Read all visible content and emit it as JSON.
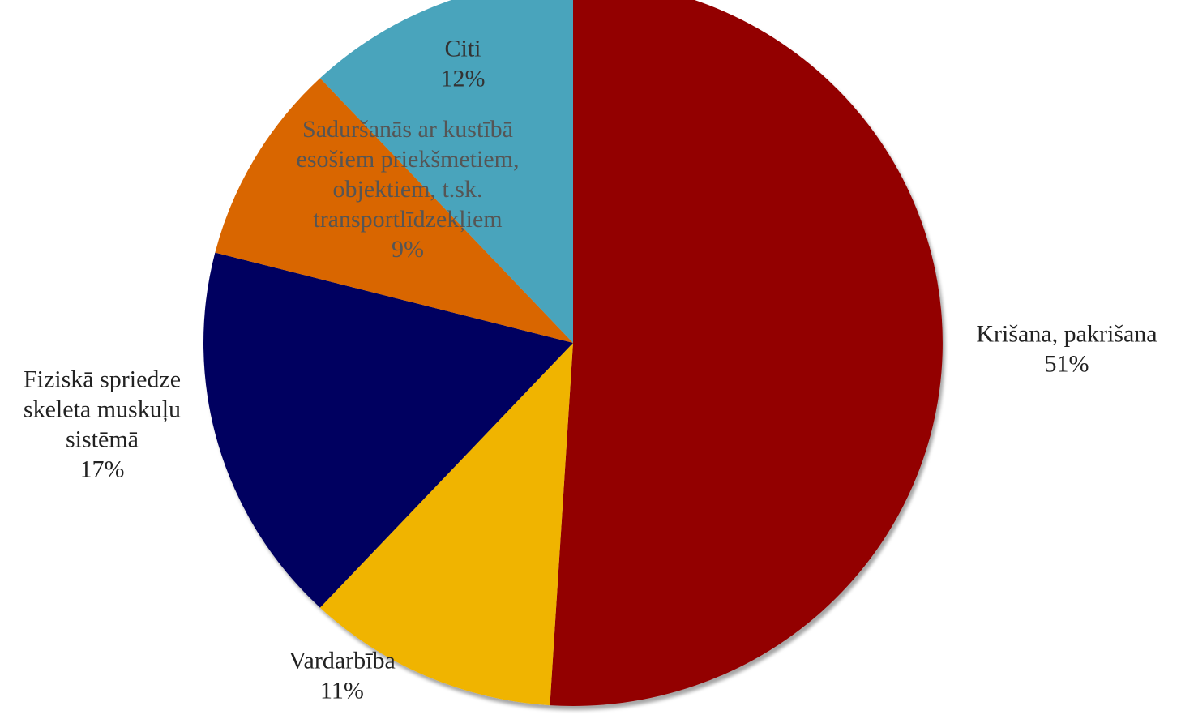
{
  "chart_data": {
    "type": "pie",
    "slices": [
      {
        "label_lines": [
          "Krišana, pakrišana"
        ],
        "percent_label": "51%",
        "value": 51,
        "color": "#930000",
        "label_color": "#222222"
      },
      {
        "label_lines": [
          "Vardarbība"
        ],
        "percent_label": "11%",
        "value": 11,
        "color": "#f0b400",
        "label_color": "#222222"
      },
      {
        "label_lines": [
          "Fiziskā spriedze",
          "skeleta muskuļu",
          "sistēmā"
        ],
        "percent_label": "17%",
        "value": 17,
        "color": "#000060",
        "label_color": "#222222"
      },
      {
        "label_lines": [
          "Saduršanās ar kustībā",
          "esošiem priekšmetiem,",
          "objektiem, t.sk.",
          "transportlīdzekļiem"
        ],
        "percent_label": "9%",
        "value": 9,
        "color": "#d96604",
        "label_color": "#555555"
      },
      {
        "label_lines": [
          "Citi"
        ],
        "percent_label": "12%",
        "value": 12,
        "color": "#48a4bc",
        "label_color": "#333333"
      }
    ]
  }
}
